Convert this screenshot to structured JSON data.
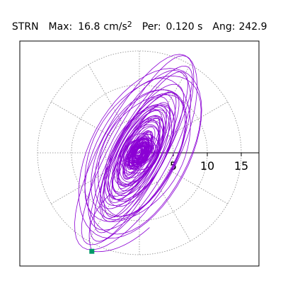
{
  "header": {
    "station": "STRN",
    "max_label": "Max:",
    "max_value": "16.8",
    "max_unit": "cm/s",
    "max_exp": "2",
    "per_label": "Per:",
    "per_value": "0.120 s",
    "ang_label": "Ang:",
    "ang_value": "242.9"
  },
  "chart_data": {
    "type": "polar-orbit",
    "title": "STRN   Max:  16.8 cm/s2  Per:  0.120 s   Ang: 242.9",
    "radial_ticks": [
      "5",
      "10",
      "15"
    ],
    "radial_values": [
      5,
      10,
      15
    ],
    "rings": [
      5,
      10,
      15
    ],
    "spoke_angles_deg": [
      0,
      30,
      60,
      90,
      120,
      150,
      180,
      210,
      240,
      270,
      300,
      330
    ],
    "grid_style": "dotted",
    "units": "cm/s2",
    "max_amplitude": 16.8,
    "max_angle_deg": 242.9,
    "period_s": 0.12,
    "orbit_orientation_deg": 62,
    "orbit_major_axis_max": 16.8,
    "orbit_minor_to_major_ratio": 0.45,
    "end_marker": {
      "x": -7.0,
      "y": -14.5
    },
    "colors": {
      "orbit": "#8B00D4",
      "marker": "#009966",
      "grid": "#888888",
      "axis": "#000000"
    }
  }
}
